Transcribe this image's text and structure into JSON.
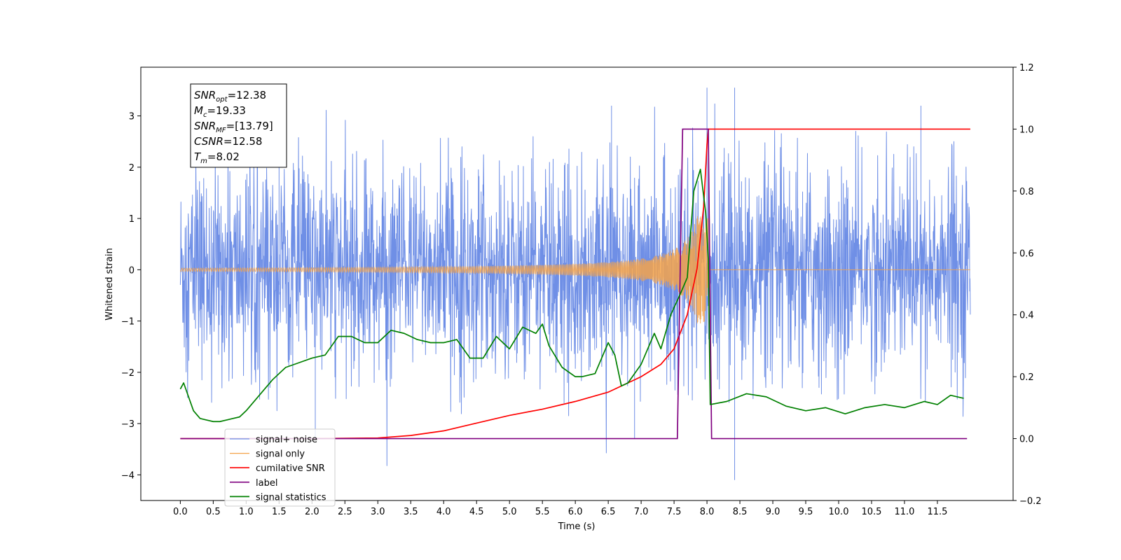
{
  "chart_data": {
    "type": "line",
    "xlabel": "Time (s)",
    "ylabel": "Whitened strain",
    "xlim": [
      -0.6,
      12.65
    ],
    "ylim": [
      -4.5,
      3.95
    ],
    "y2lim": [
      -0.2,
      1.2
    ],
    "x_ticks": [
      0.0,
      0.5,
      1.0,
      1.5,
      2.0,
      2.5,
      3.0,
      3.5,
      4.0,
      4.5,
      5.0,
      5.5,
      6.0,
      6.5,
      7.0,
      7.5,
      8.0,
      8.5,
      9.0,
      9.5,
      10.0,
      10.5,
      11.0,
      11.5
    ],
    "x_tick_labels": [
      "0.0",
      "0.5",
      "1.0",
      "1.5",
      "2.0",
      "2.5",
      "3.0",
      "3.5",
      "4.0",
      "4.5",
      "5.0",
      "5.5",
      "6.0",
      "6.5",
      "7.0",
      "7.5",
      "8.0",
      "8.5",
      "9.0",
      "9.5",
      "10.0",
      "10.5",
      "11.0",
      "11.5"
    ],
    "y_ticks": [
      -4,
      -3,
      -2,
      -1,
      0,
      1,
      2,
      3
    ],
    "y_tick_labels": [
      "−4",
      "−3",
      "−2",
      "−1",
      "0",
      "1",
      "2",
      "3"
    ],
    "y2_ticks": [
      -0.2,
      0.0,
      0.2,
      0.4,
      0.6,
      0.8,
      1.0,
      1.2
    ],
    "y2_tick_labels": [
      "−0.2",
      "0.0",
      "0.2",
      "0.4",
      "0.6",
      "0.8",
      "1.0",
      "1.2"
    ],
    "grid": false,
    "legend_placement": "lower-left",
    "stats_box": {
      "lines": [
        {
          "sym": "SNR",
          "sub": "opt",
          "val": "=12.38"
        },
        {
          "sym": "M",
          "sub": "c",
          "val": "=19.33"
        },
        {
          "sym": "SNR",
          "sub": "MF",
          "val": "=[13.79]"
        },
        {
          "sym": "CSNR",
          "sub": "",
          "val": "=12.58"
        },
        {
          "sym": "T",
          "sub": "m",
          "val": "=8.02"
        }
      ]
    },
    "series": [
      {
        "name": "signal+ noise",
        "color": "#6f8fe6",
        "axis": "left",
        "noise": {
          "t_start": 0.0,
          "t_end": 12.0,
          "core_std": 1.0,
          "typical_peak": 2.4,
          "max_peak": 3.6,
          "min_peak": -4.1
        }
      },
      {
        "name": "signal only",
        "color": "#f5a34a",
        "axis": "left",
        "chirp": {
          "t_start": 0.0,
          "t_merge": 8.02,
          "t_end": 12.0,
          "amp_at_3s": 0.02,
          "amp_at_6s": 0.1,
          "amp_at_7_5s": 0.45,
          "amp_at_8s": 1.05
        }
      },
      {
        "name": "cumilative SNR",
        "color": "#ff0000",
        "axis": "right",
        "x": [
          0.0,
          2.0,
          3.0,
          3.5,
          4.0,
          4.5,
          5.0,
          5.5,
          6.0,
          6.5,
          7.0,
          7.3,
          7.5,
          7.7,
          7.85,
          7.95,
          8.0,
          8.02,
          12.0
        ],
        "y": [
          0.0,
          0.0,
          0.002,
          0.01,
          0.025,
          0.05,
          0.075,
          0.095,
          0.12,
          0.15,
          0.2,
          0.24,
          0.29,
          0.4,
          0.55,
          0.75,
          0.95,
          1.0,
          1.0
        ]
      },
      {
        "name": "label",
        "color": "#800080",
        "axis": "right",
        "x": [
          0.0,
          7.55,
          7.63,
          8.02,
          8.07,
          11.95
        ],
        "y": [
          0.0,
          0.0,
          1.0,
          1.0,
          0.0,
          0.0
        ]
      },
      {
        "name": "signal statistics",
        "color": "#008000",
        "axis": "right",
        "x": [
          0.0,
          0.05,
          0.1,
          0.2,
          0.3,
          0.4,
          0.5,
          0.6,
          0.7,
          0.8,
          0.9,
          1.0,
          1.2,
          1.4,
          1.6,
          1.8,
          2.0,
          2.2,
          2.4,
          2.6,
          2.8,
          3.0,
          3.2,
          3.4,
          3.6,
          3.8,
          4.0,
          4.2,
          4.4,
          4.6,
          4.8,
          5.0,
          5.2,
          5.4,
          5.5,
          5.6,
          5.8,
          6.0,
          6.1,
          6.3,
          6.5,
          6.6,
          6.7,
          6.8,
          7.0,
          7.2,
          7.3,
          7.45,
          7.6,
          7.7,
          7.8,
          7.9,
          7.98,
          8.02,
          8.05,
          8.3,
          8.6,
          8.9,
          9.2,
          9.5,
          9.8,
          10.1,
          10.4,
          10.7,
          11.0,
          11.3,
          11.5,
          11.7,
          11.9
        ],
        "y": [
          0.16,
          0.18,
          0.15,
          0.09,
          0.065,
          0.06,
          0.055,
          0.055,
          0.06,
          0.065,
          0.07,
          0.09,
          0.14,
          0.19,
          0.23,
          0.245,
          0.26,
          0.27,
          0.33,
          0.33,
          0.31,
          0.31,
          0.35,
          0.34,
          0.32,
          0.31,
          0.31,
          0.32,
          0.26,
          0.26,
          0.33,
          0.29,
          0.36,
          0.34,
          0.37,
          0.3,
          0.23,
          0.2,
          0.2,
          0.21,
          0.31,
          0.27,
          0.17,
          0.18,
          0.24,
          0.34,
          0.29,
          0.4,
          0.47,
          0.52,
          0.8,
          0.87,
          0.73,
          0.58,
          0.11,
          0.12,
          0.145,
          0.135,
          0.105,
          0.09,
          0.1,
          0.08,
          0.1,
          0.11,
          0.1,
          0.12,
          0.11,
          0.14,
          0.13
        ]
      }
    ]
  }
}
